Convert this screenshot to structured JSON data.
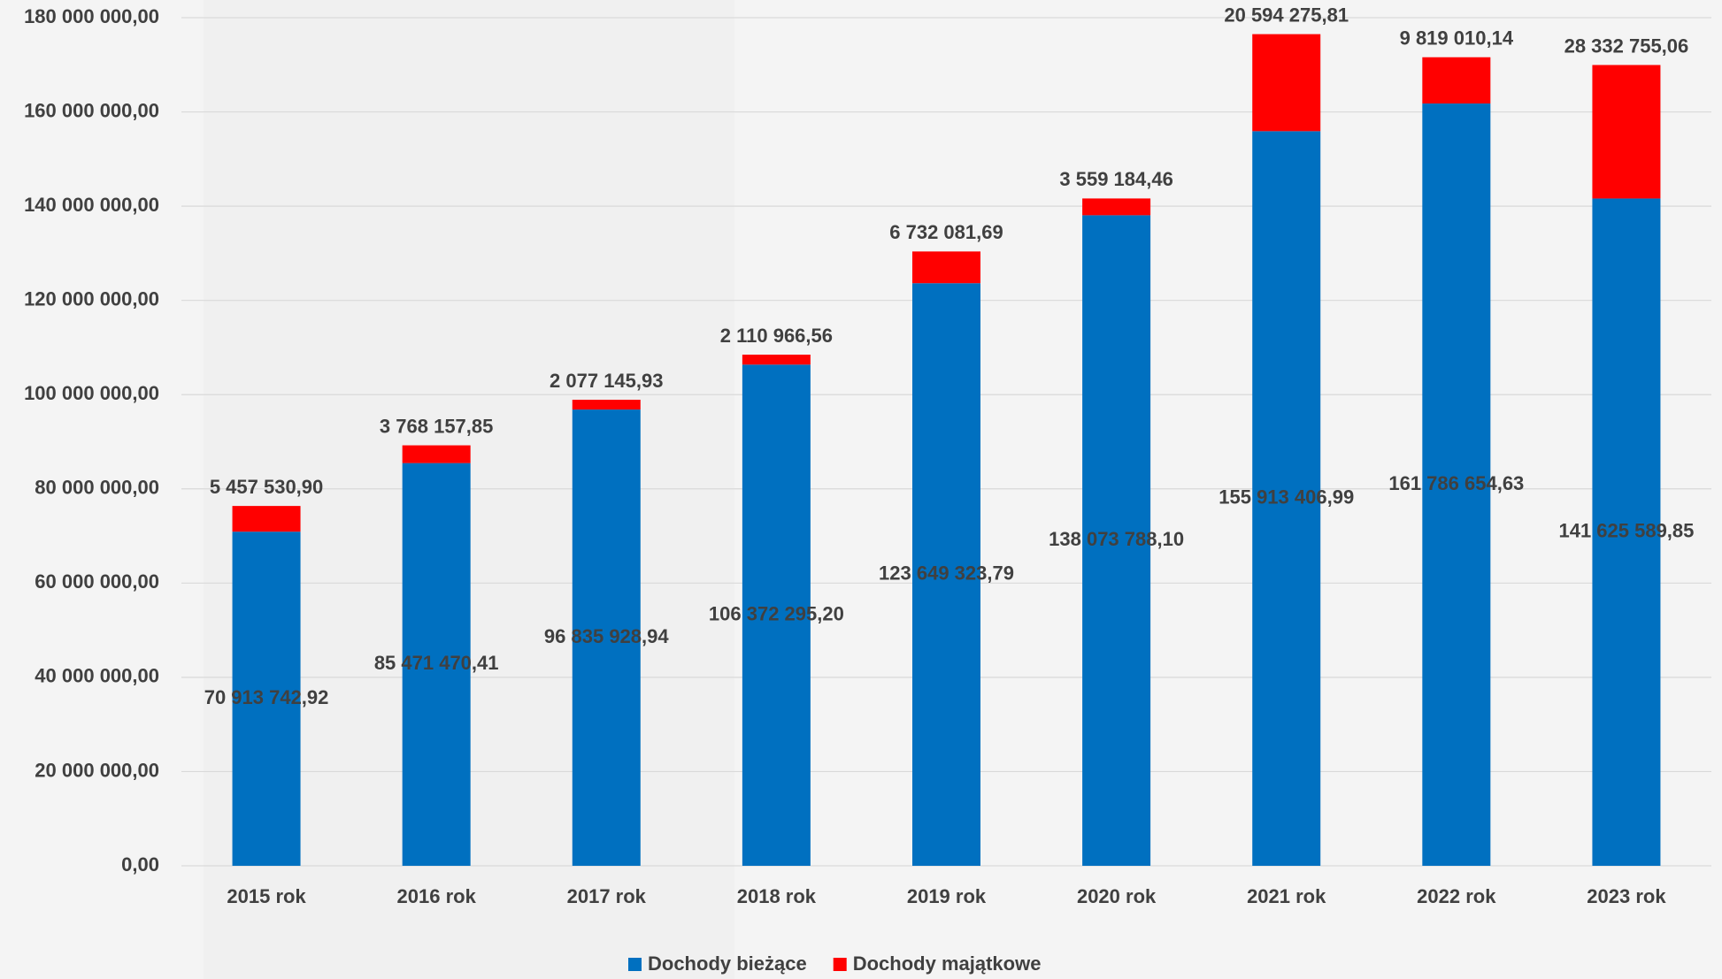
{
  "chart_data": {
    "type": "stacked_bar",
    "categories": [
      "2015 rok",
      "2016 rok",
      "2017 rok",
      "2018 rok",
      "2019 rok",
      "2020 rok",
      "2021 rok",
      "2022 rok",
      "2023 rok"
    ],
    "series": [
      {
        "name": "Dochody bieżące",
        "color": "#0070c0",
        "values": [
          70913742.92,
          85471470.41,
          96835928.94,
          106372295.2,
          123649323.79,
          138073788.1,
          155913406.99,
          161786654.63,
          141625589.85
        ],
        "value_labels": [
          "70 913 742,92",
          "85 471 470,41",
          "96 835 928,94",
          "106 372 295,20",
          "123 649 323,79",
          "138 073 788,10",
          "155 913 406,99",
          "161 786 654,63",
          "141 625 589,85"
        ]
      },
      {
        "name": "Dochody majątkowe",
        "color": "#ff0000",
        "values": [
          5457530.9,
          3768157.85,
          2077145.93,
          2110966.56,
          6732081.69,
          3559184.46,
          20594275.81,
          9819010.14,
          28332755.06
        ],
        "value_labels": [
          "5 457 530,90",
          "3 768 157,85",
          "2 077 145,93",
          "2 110 966,56",
          "6 732 081,69",
          "3 559 184,46",
          "20 594 275,81",
          "9 819 010,14",
          "28 332 755,06"
        ]
      }
    ],
    "ylim": [
      0,
      180000000
    ],
    "yticks": [
      {
        "value": 0,
        "label": "0,00"
      },
      {
        "value": 20000000,
        "label": "20 000 000,00"
      },
      {
        "value": 40000000,
        "label": "40 000 000,00"
      },
      {
        "value": 60000000,
        "label": "60 000 000,00"
      },
      {
        "value": 80000000,
        "label": "80 000 000,00"
      },
      {
        "value": 100000000,
        "label": "100 000 000,00"
      },
      {
        "value": 120000000,
        "label": "120 000 000,00"
      },
      {
        "value": 140000000,
        "label": "140 000 000,00"
      },
      {
        "value": 160000000,
        "label": "160 000 000,00"
      },
      {
        "value": 180000000,
        "label": "180 000 000,00"
      }
    ],
    "grid": true,
    "legend": "bottom"
  }
}
